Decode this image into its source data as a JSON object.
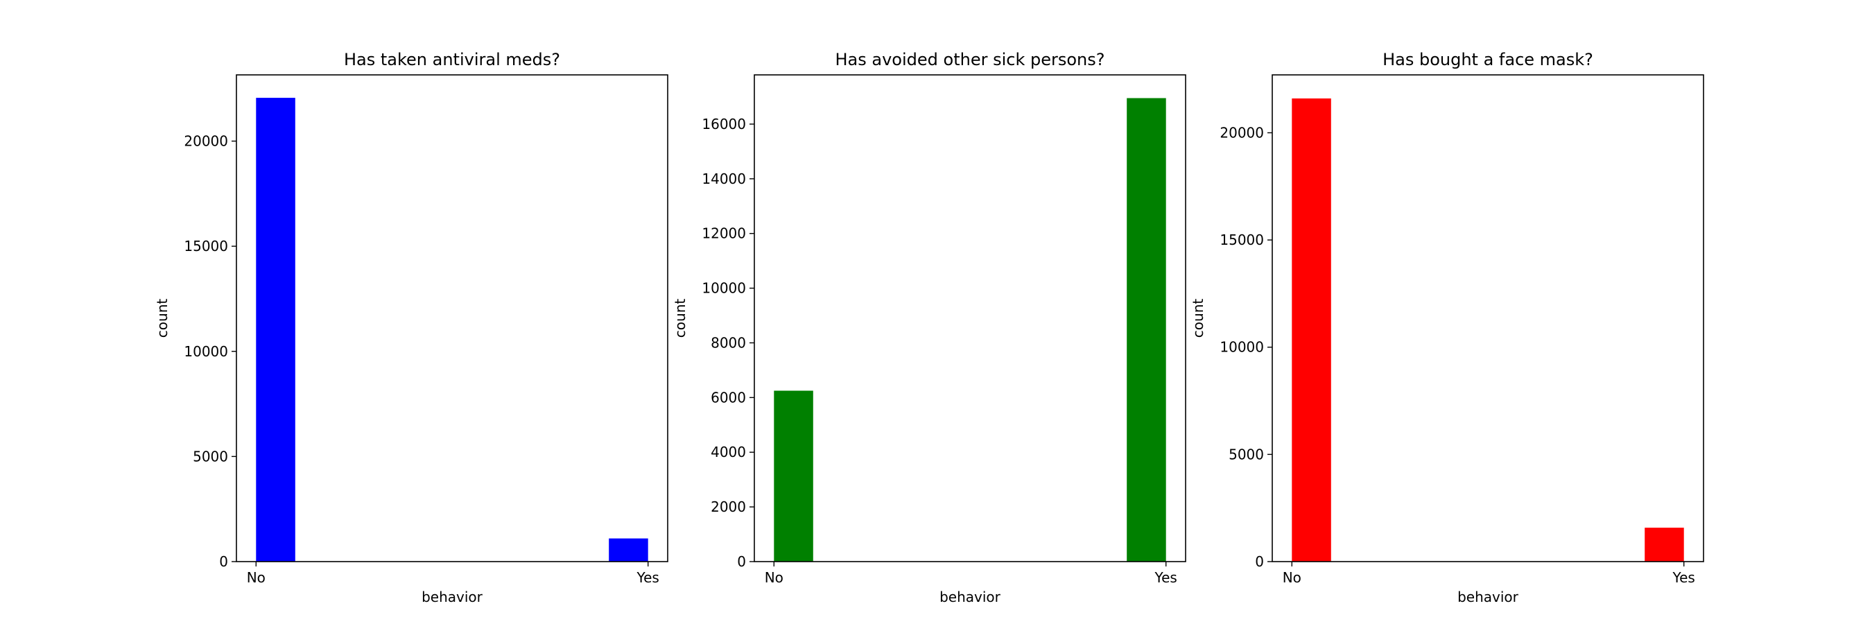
{
  "chart_data": [
    {
      "type": "bar",
      "title": "Has taken antiviral meds?",
      "xlabel": "behavior",
      "ylabel": "count",
      "categories": [
        "No",
        "Yes"
      ],
      "values": [
        22060,
        1100
      ],
      "color": "#0000ff",
      "ylim": [
        0,
        23150
      ],
      "yticks": [
        0,
        5000,
        10000,
        15000,
        20000
      ],
      "grid": false,
      "legend": false
    },
    {
      "type": "bar",
      "title": "Has avoided other sick persons?",
      "xlabel": "behavior",
      "ylabel": "count",
      "categories": [
        "No",
        "Yes"
      ],
      "values": [
        6250,
        16950
      ],
      "color": "#008000",
      "ylim": [
        0,
        17800
      ],
      "yticks": [
        0,
        2000,
        4000,
        6000,
        8000,
        10000,
        12000,
        14000,
        16000
      ],
      "grid": false,
      "legend": false
    },
    {
      "type": "bar",
      "title": "Has bought a face mask?",
      "xlabel": "behavior",
      "ylabel": "count",
      "categories": [
        "No",
        "Yes"
      ],
      "values": [
        21600,
        1580
      ],
      "color": "#ff0000",
      "ylim": [
        0,
        22700
      ],
      "yticks": [
        0,
        5000,
        10000,
        15000,
        20000
      ],
      "grid": false,
      "legend": false
    }
  ]
}
